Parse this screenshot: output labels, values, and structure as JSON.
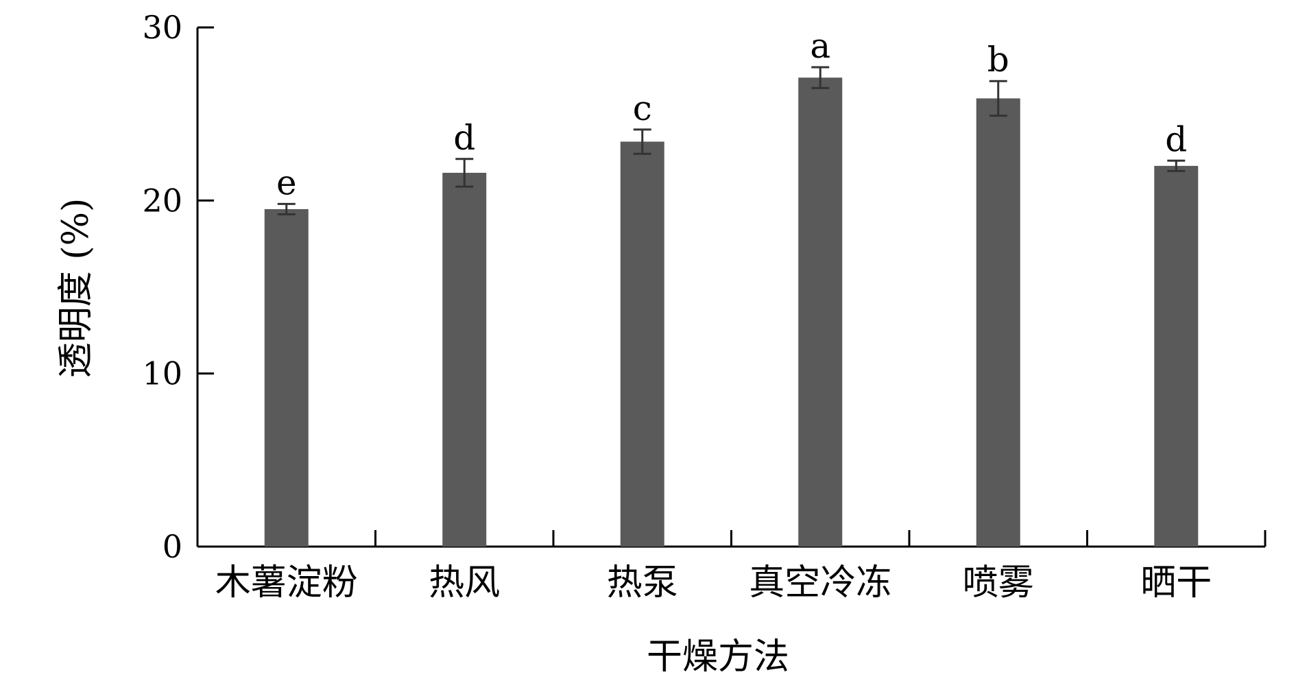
{
  "chart_data": {
    "type": "bar",
    "title": "",
    "xlabel": "干燥方法",
    "ylabel": "透明度 (%)",
    "ylim": [
      0,
      30
    ],
    "yticks": [
      "0",
      "10",
      "20",
      "30"
    ],
    "categories": [
      "木薯淀粉",
      "热风",
      "热泵",
      "真空冷冻",
      "喷雾",
      "晒干"
    ],
    "values": [
      19.5,
      21.6,
      23.4,
      27.1,
      25.9,
      22.0
    ],
    "errors": [
      0.3,
      0.8,
      0.7,
      0.6,
      1.0,
      0.3
    ],
    "significance": [
      "e",
      "d",
      "c",
      "a",
      "b",
      "d"
    ],
    "bar_color": "#5a5a5a",
    "grid": false
  }
}
